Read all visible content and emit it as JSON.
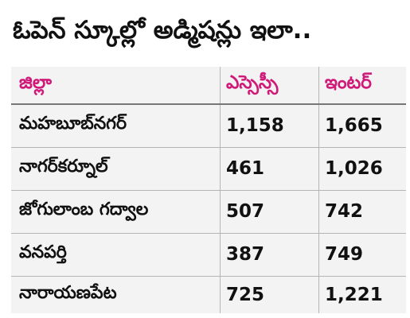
{
  "title": "ఓపెన్ స్కూల్లో అడ్మిషన్లు ఇలా..",
  "table": {
    "headers": [
      "జిల్లా",
      "ఎస్సెస్సీ",
      "ఇంటర్"
    ],
    "rows": [
      {
        "district": "మహబూబ్‌నగర్",
        "ssc": "1,158",
        "inter": "1,665"
      },
      {
        "district": "నాగర్‌కర్నూల్",
        "ssc": "461",
        "inter": "1,026"
      },
      {
        "district": "జోగులాంబ గద్వాల",
        "ssc": "507",
        "inter": "742"
      },
      {
        "district": "వనపర్తి",
        "ssc": "387",
        "inter": "749"
      },
      {
        "district": "నారాయణపేట",
        "ssc": "725",
        "inter": "1,221"
      }
    ]
  },
  "colors": {
    "header_text": "#d01a7a",
    "table_background": "#f3f3f3",
    "body_text": "#111111"
  }
}
